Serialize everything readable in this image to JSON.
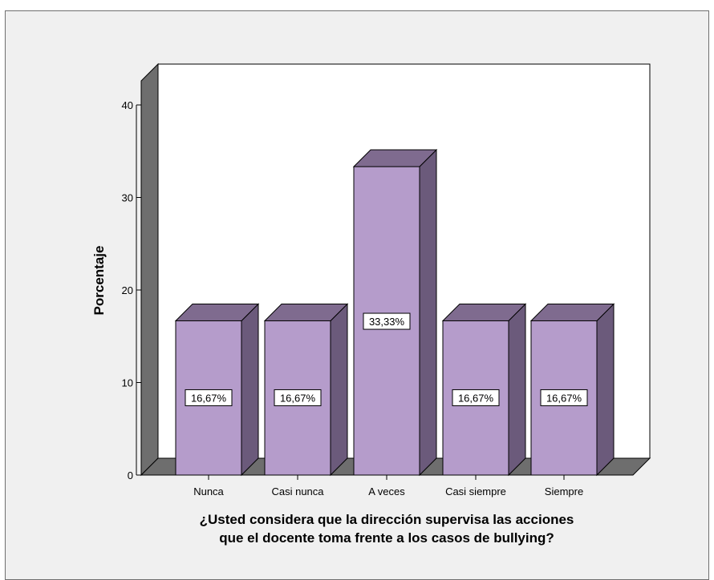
{
  "chart_data": {
    "type": "bar",
    "categories": [
      "Nunca",
      "Casi nunca",
      "A veces",
      "Casi siempre",
      "Siempre"
    ],
    "values": [
      16.67,
      16.67,
      33.33,
      16.67,
      16.67
    ],
    "data_labels": [
      "16,67%",
      "16,67%",
      "33,33%",
      "16,67%",
      "16,67%"
    ],
    "title": "",
    "xlabel_lines": [
      "¿Usted considera que la dirección supervisa las acciones",
      "que el docente toma frente a los casos de bullying?"
    ],
    "ylabel": "Porcentaje",
    "ylim": [
      0,
      40
    ],
    "yticks": [
      0,
      10,
      20,
      30,
      40
    ],
    "style": "3d",
    "grid": false,
    "legend": "none",
    "colors": {
      "bar_front": "#b59ccb",
      "bar_top": "#7f6b8f",
      "bar_side": "#6b5a7b",
      "back_wall": "#ffffff",
      "left_wall": "#6e6e6e",
      "floor": "#6e6e6e",
      "background": "#f0f0f0"
    }
  }
}
